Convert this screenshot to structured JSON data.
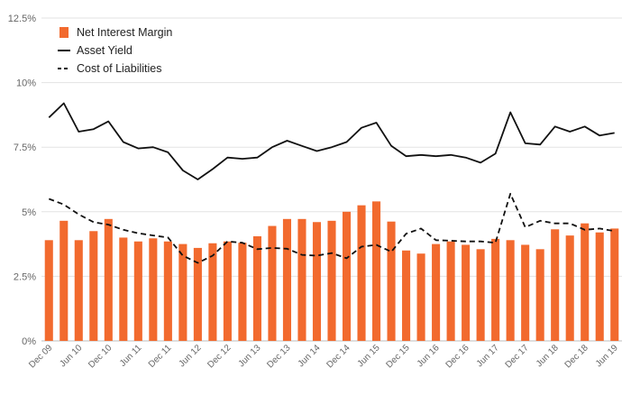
{
  "chart_data": {
    "type": "bar+line",
    "title": "",
    "xlabel": "",
    "ylabel": "",
    "ylim": [
      0,
      12.5
    ],
    "y_ticks": [
      "0%",
      "2.5%",
      "5%",
      "7.5%",
      "10%",
      "12.5%"
    ],
    "y_tick_values": [
      0,
      2.5,
      5,
      7.5,
      10,
      12.5
    ],
    "x_tick_labels": [
      "Dec 09",
      "Jun 10",
      "Dec 10",
      "Jun 11",
      "Dec 11",
      "Jun 12",
      "Dec 12",
      "Jun 13",
      "Dec 13",
      "Jun 14",
      "Dec 14",
      "Jun 15",
      "Dec 15",
      "Jun 16",
      "Dec 16",
      "Jun 17",
      "Dec 17",
      "Jun 18",
      "Dec 18",
      "Jun 19"
    ],
    "categories": [
      "Dec 09",
      "Mar 10",
      "Jun 10",
      "Sep 10",
      "Dec 10",
      "Mar 11",
      "Jun 11",
      "Sep 11",
      "Dec 11",
      "Mar 12",
      "Jun 12",
      "Sep 12",
      "Dec 12",
      "Mar 13",
      "Jun 13",
      "Sep 13",
      "Dec 13",
      "Mar 14",
      "Jun 14",
      "Sep 14",
      "Dec 14",
      "Mar 15",
      "Jun 15",
      "Sep 15",
      "Dec 15",
      "Mar 16",
      "Jun 16",
      "Sep 16",
      "Dec 16",
      "Mar 17",
      "Jun 17",
      "Sep 17",
      "Dec 17",
      "Mar 18",
      "Jun 18",
      "Sep 18",
      "Dec 18",
      "Mar 19",
      "Jun 19"
    ],
    "legend_position": "top-left",
    "series": [
      {
        "name": "Net Interest Margin",
        "kind": "bar",
        "color": "#f26a2e",
        "values": [
          3.9,
          4.65,
          3.9,
          4.25,
          4.72,
          4.0,
          3.85,
          3.97,
          3.85,
          3.75,
          3.6,
          3.78,
          3.85,
          3.8,
          4.05,
          4.45,
          4.72,
          4.72,
          4.6,
          4.65,
          5.0,
          5.25,
          5.4,
          4.62,
          3.5,
          3.38,
          3.75,
          3.85,
          3.72,
          3.55,
          3.95,
          3.9,
          3.72,
          3.55,
          4.32,
          4.08,
          4.55,
          4.2,
          4.35
        ]
      },
      {
        "name": "Asset Yield",
        "kind": "line",
        "color": "#111111",
        "dash": "solid",
        "values": [
          8.65,
          9.2,
          8.1,
          8.2,
          8.5,
          7.7,
          7.45,
          7.5,
          7.3,
          6.6,
          6.25,
          6.65,
          7.1,
          7.05,
          7.1,
          7.5,
          7.75,
          7.55,
          7.35,
          7.5,
          7.7,
          8.25,
          8.45,
          7.55,
          7.15,
          7.2,
          7.15,
          7.2,
          7.1,
          6.9,
          7.25,
          8.85,
          7.65,
          7.6,
          8.3,
          8.1,
          8.3,
          7.95,
          8.05
        ]
      },
      {
        "name": "Cost of Liabilities",
        "kind": "line",
        "color": "#111111",
        "dash": "dashed",
        "values": [
          5.5,
          5.28,
          4.9,
          4.6,
          4.5,
          4.3,
          4.17,
          4.08,
          4.0,
          3.3,
          3.02,
          3.3,
          3.85,
          3.8,
          3.55,
          3.6,
          3.57,
          3.33,
          3.3,
          3.4,
          3.2,
          3.65,
          3.72,
          3.45,
          4.15,
          4.35,
          3.9,
          3.88,
          3.85,
          3.85,
          3.8,
          5.7,
          4.4,
          4.65,
          4.55,
          4.55,
          4.3,
          4.35,
          4.25
        ]
      }
    ]
  }
}
